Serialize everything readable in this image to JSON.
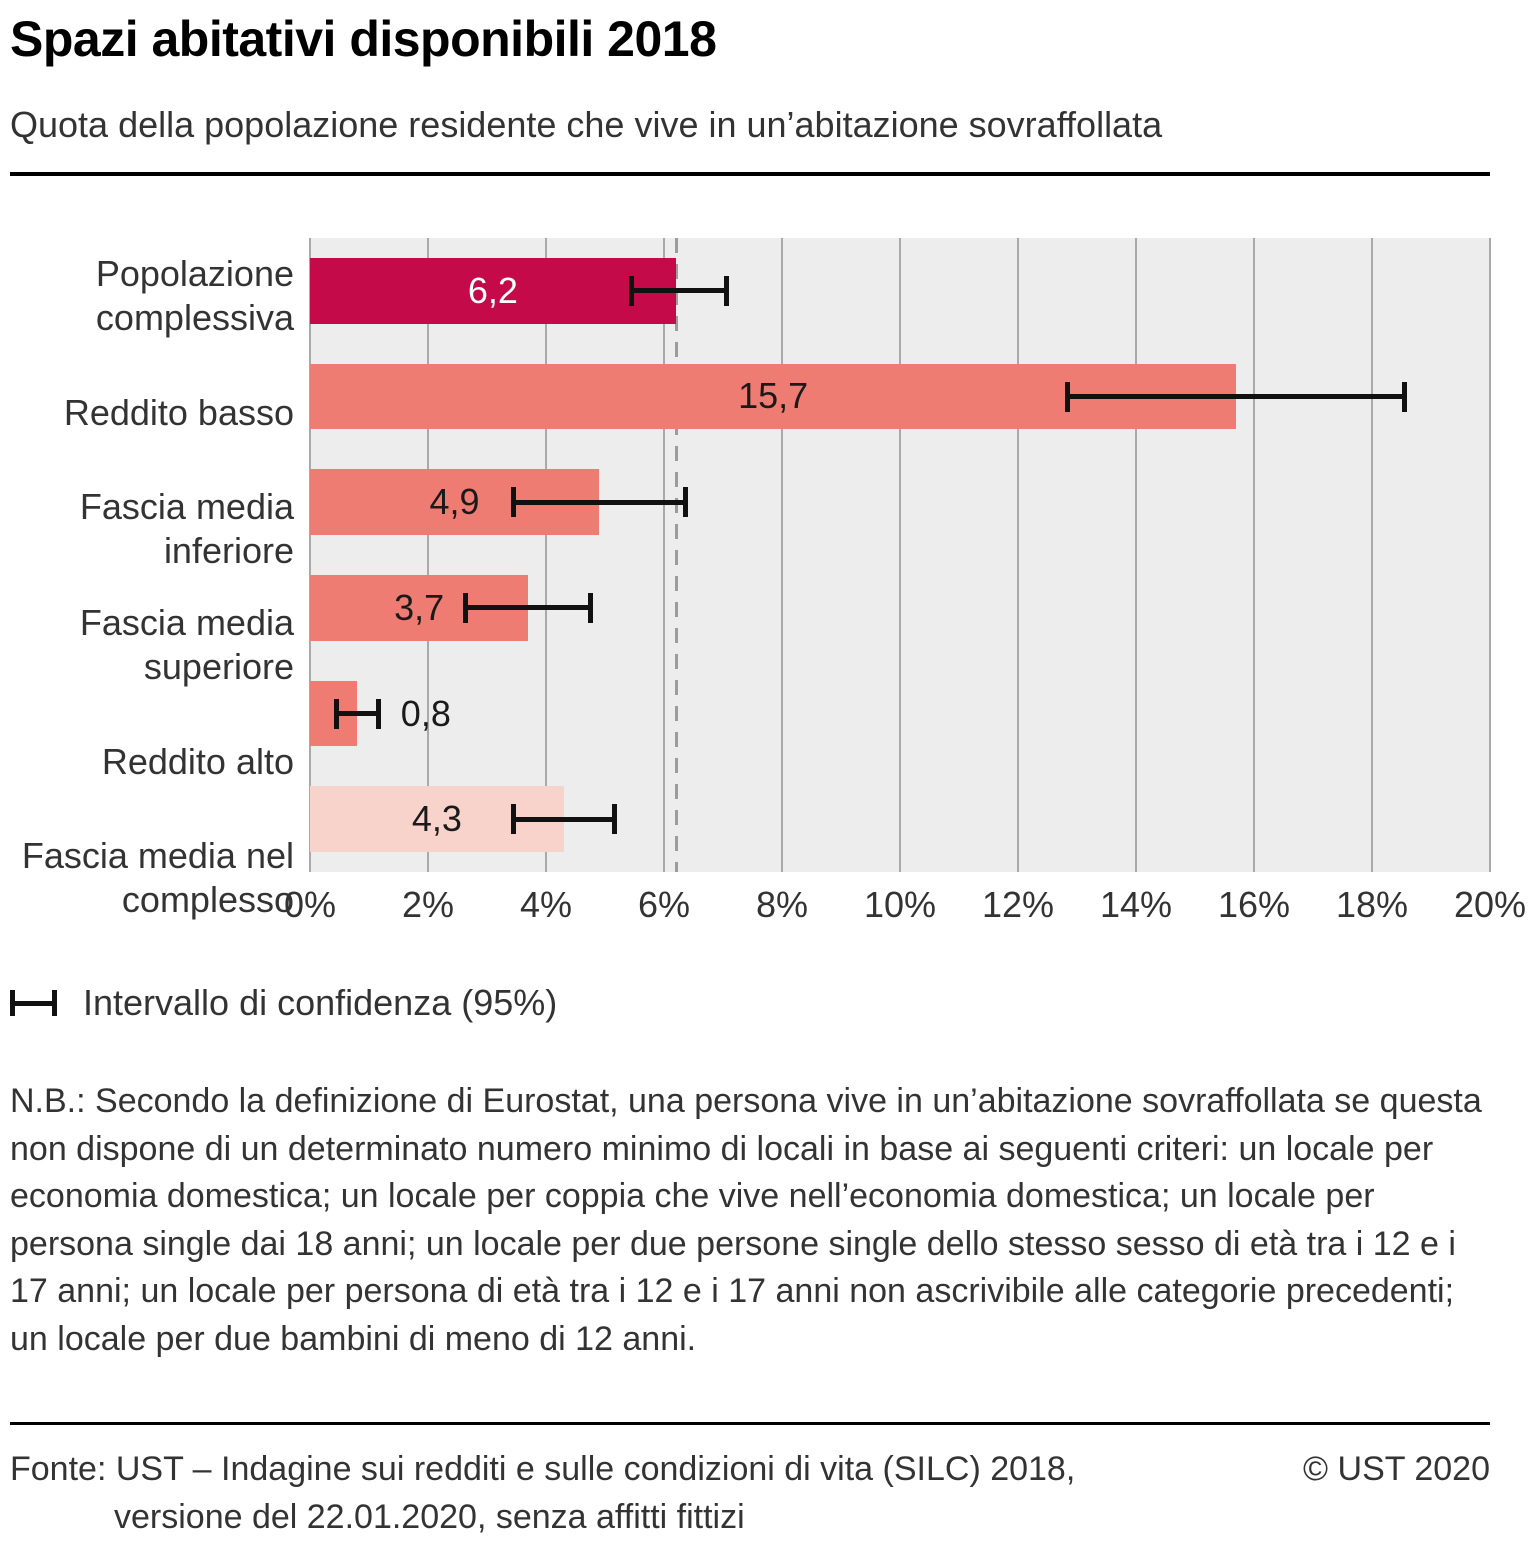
{
  "header": {
    "title": "Spazi abitativi disponibili 2018",
    "subtitle": "Quota della popolazione residente che vive in un’abitazione sovraffollata"
  },
  "legend": {
    "label": "Intervallo di confidenza (95%)"
  },
  "note": {
    "text": "N.B.: Secondo la definizione di Eurostat, una persona vive in un’abitazione sovraffollata se questa non dispone di un determinato numero minimo di locali in base ai seguenti criteri: un locale per economia domestica; un locale per coppia che vive nell’economia domestica; un locale per persona single dai 18 anni; un locale per due persone single dello stesso sesso di età tra i 12 e i 17 anni; un locale per persona di età tra i 12 e i 17 anni non ascrivibile alle categorie precedenti; un locale per due bambini di meno di 12 anni."
  },
  "footer": {
    "source_line1": "Fonte: UST – Indagine sui redditi e sulle condizioni di vita (SILC) 2018,",
    "source_line2": "versione del 22.01.2020, senza affitti fittizi",
    "copyright": "© UST 2020"
  },
  "chart_data": {
    "type": "bar",
    "orientation": "horizontal",
    "title": "Spazi abitativi disponibili 2018",
    "subtitle": "Quota della popolazione residente che vive in un’abitazione sovraffollata",
    "xlabel": "",
    "ylabel": "",
    "xlim": [
      0,
      20
    ],
    "grid": "vertical",
    "x_tick_values": [
      0,
      2,
      4,
      6,
      8,
      10,
      12,
      14,
      16,
      18,
      20
    ],
    "x_ticks": [
      "0%",
      "2%",
      "4%",
      "6%",
      "8%",
      "10%",
      "12%",
      "14%",
      "16%",
      "18%",
      "20%"
    ],
    "categories": [
      "Popolazione complessiva",
      "Reddito basso",
      "Fascia media inferiore",
      "Fascia media superiore",
      "Reddito alto",
      "Fascia media nel complesso"
    ],
    "values": [
      6.2,
      15.7,
      4.9,
      3.7,
      0.8,
      4.3
    ],
    "value_labels": [
      "6,2",
      "15,7",
      "4,9",
      "3,7",
      "0,8",
      "4,3"
    ],
    "ci_low": [
      5.4,
      12.8,
      3.4,
      2.6,
      0.4,
      3.4
    ],
    "ci_high": [
      7.1,
      18.6,
      6.4,
      4.8,
      1.2,
      5.2
    ],
    "reference_line": 6.2,
    "bar_colors": [
      "#c40a49",
      "#ee7c72",
      "#ee7c72",
      "#ee7c72",
      "#ee7c72",
      "#f8d3cb"
    ],
    "value_label_colors": [
      "#ffffff",
      "#1a1a1a",
      "#1a1a1a",
      "#1a1a1a",
      "#1a1a1a",
      "#1a1a1a"
    ],
    "value_label_inside": [
      true,
      true,
      true,
      true,
      false,
      true
    ],
    "plot_background": "#ededed",
    "gridline_color": "#a9a9a9",
    "reference_line_color": "#9c9c9c",
    "errorbar_color": "#111111",
    "legend": "Intervallo di confidenza (95%)",
    "legend_position": "bottom-left"
  }
}
